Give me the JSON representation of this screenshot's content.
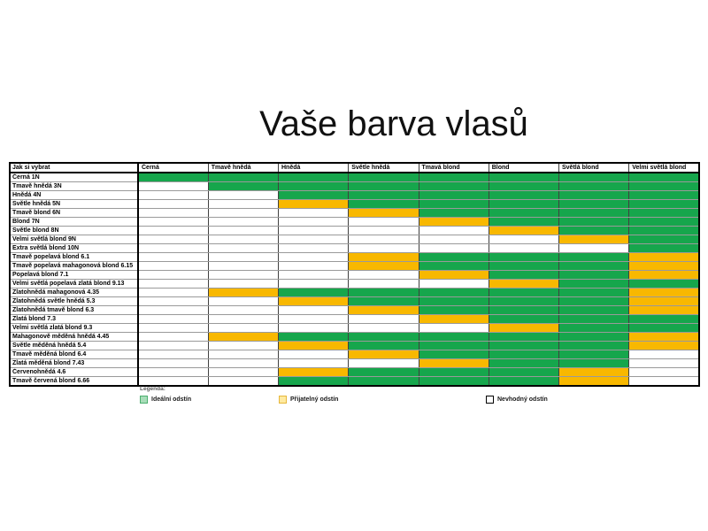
{
  "title": "Vaše barva vlasů",
  "colors": {
    "ideal": "#16A64C",
    "acceptable": "#F8B800",
    "unsuitable": "#FFFFFF",
    "grid_line": "#9a9a9a",
    "border": "#000000"
  },
  "chart_data": {
    "type": "heatmap",
    "title": "Vaše barva vlasů",
    "corner_label": "Jak si vybrat",
    "columns": [
      "Černá",
      "Tmavě hnědá",
      "Hnědá",
      "Světle hnědá",
      "Tmavá blond",
      "Blond",
      "Světlá blond",
      "Velmi světlá blond"
    ],
    "code_map": {
      "G": {
        "meaning": "Ideální odstín",
        "color": "#16A64C"
      },
      "O": {
        "meaning": "Přijatelný odstín",
        "color": "#F8B800"
      },
      "W": {
        "meaning": "Nevhodný odstín",
        "color": "#FFFFFF"
      }
    },
    "rows": [
      {
        "label": "Černá 1N",
        "cells": [
          "G",
          "G",
          "G",
          "G",
          "G",
          "G",
          "G",
          "G"
        ]
      },
      {
        "label": "Tmavě hnědá 3N",
        "cells": [
          "W",
          "G",
          "G",
          "G",
          "G",
          "G",
          "G",
          "G"
        ]
      },
      {
        "label": "Hnědá 4N",
        "cells": [
          "W",
          "W",
          "G",
          "G",
          "G",
          "G",
          "G",
          "G"
        ]
      },
      {
        "label": "Světle hnědá 5N",
        "cells": [
          "W",
          "W",
          "O",
          "G",
          "G",
          "G",
          "G",
          "G"
        ]
      },
      {
        "label": "Tmavě blond 6N",
        "cells": [
          "W",
          "W",
          "W",
          "O",
          "G",
          "G",
          "G",
          "G"
        ]
      },
      {
        "label": "Blond 7N",
        "cells": [
          "W",
          "W",
          "W",
          "W",
          "O",
          "G",
          "G",
          "G"
        ]
      },
      {
        "label": "Světle blond 8N",
        "cells": [
          "W",
          "W",
          "W",
          "W",
          "W",
          "O",
          "G",
          "G"
        ]
      },
      {
        "label": "Velmi světlá blond 9N",
        "cells": [
          "W",
          "W",
          "W",
          "W",
          "W",
          "W",
          "O",
          "G"
        ]
      },
      {
        "label": "Extra světlá blond 10N",
        "cells": [
          "W",
          "W",
          "W",
          "W",
          "W",
          "W",
          "W",
          "G"
        ]
      },
      {
        "label": "Tmavě popelavá blond 6.1",
        "cells": [
          "W",
          "W",
          "W",
          "O",
          "G",
          "G",
          "G",
          "O"
        ]
      },
      {
        "label": "Tmavě popelavá mahagonová blond 6.15",
        "cells": [
          "W",
          "W",
          "W",
          "O",
          "G",
          "G",
          "G",
          "O"
        ]
      },
      {
        "label": "Popelavá blond 7.1",
        "cells": [
          "W",
          "W",
          "W",
          "W",
          "O",
          "G",
          "G",
          "O"
        ]
      },
      {
        "label": "Velmi světlá popelavá zlatá blond 9.13",
        "cells": [
          "W",
          "W",
          "W",
          "W",
          "W",
          "O",
          "G",
          "G"
        ]
      },
      {
        "label": "Zlatohnědá mahagonová 4.35",
        "cells": [
          "W",
          "O",
          "G",
          "G",
          "G",
          "G",
          "G",
          "O"
        ]
      },
      {
        "label": "Zlatohnědá světle hnědá 5.3",
        "cells": [
          "W",
          "W",
          "O",
          "G",
          "G",
          "G",
          "G",
          "O"
        ]
      },
      {
        "label": "Zlatohnědá tmavě blond 6.3",
        "cells": [
          "W",
          "W",
          "W",
          "O",
          "G",
          "G",
          "G",
          "O"
        ]
      },
      {
        "label": "Zlatá blond 7.3",
        "cells": [
          "W",
          "W",
          "W",
          "W",
          "O",
          "G",
          "G",
          "G"
        ]
      },
      {
        "label": "Velmi světlá zlatá blond 9.3",
        "cells": [
          "W",
          "W",
          "W",
          "W",
          "W",
          "O",
          "G",
          "G"
        ]
      },
      {
        "label": "Mahagonově měděná hnědá 4.45",
        "cells": [
          "W",
          "O",
          "G",
          "G",
          "G",
          "G",
          "G",
          "O"
        ]
      },
      {
        "label": "Světle měděná hnědá 5.4",
        "cells": [
          "W",
          "W",
          "O",
          "G",
          "G",
          "G",
          "G",
          "O"
        ]
      },
      {
        "label": "Tmavě měděná blond 6.4",
        "cells": [
          "W",
          "W",
          "W",
          "O",
          "G",
          "G",
          "G",
          "W"
        ]
      },
      {
        "label": "Zlatá měděná blond 7.43",
        "cells": [
          "W",
          "W",
          "W",
          "W",
          "O",
          "G",
          "G",
          "W"
        ]
      },
      {
        "label": "Červenohnědá 4.6",
        "cells": [
          "W",
          "W",
          "O",
          "G",
          "G",
          "G",
          "O",
          "W"
        ]
      },
      {
        "label": "Tmavě červená blond 6.66",
        "cells": [
          "W",
          "W",
          "G",
          "G",
          "G",
          "G",
          "O",
          "W"
        ]
      }
    ]
  },
  "legend": {
    "heading": "Legenda:",
    "items": [
      {
        "label": "Ideální odstín",
        "code": "G",
        "swatch_fill": "#A8DDB9",
        "swatch_border": "#4CAF6E"
      },
      {
        "label": "Přijatelný odstín",
        "code": "O",
        "swatch_fill": "#FFEAA0",
        "swatch_border": "#E6B73C"
      },
      {
        "label": "Nevhodný odstín",
        "code": "W",
        "swatch_fill": "#FFFFFF",
        "swatch_border": "#000000"
      }
    ]
  }
}
